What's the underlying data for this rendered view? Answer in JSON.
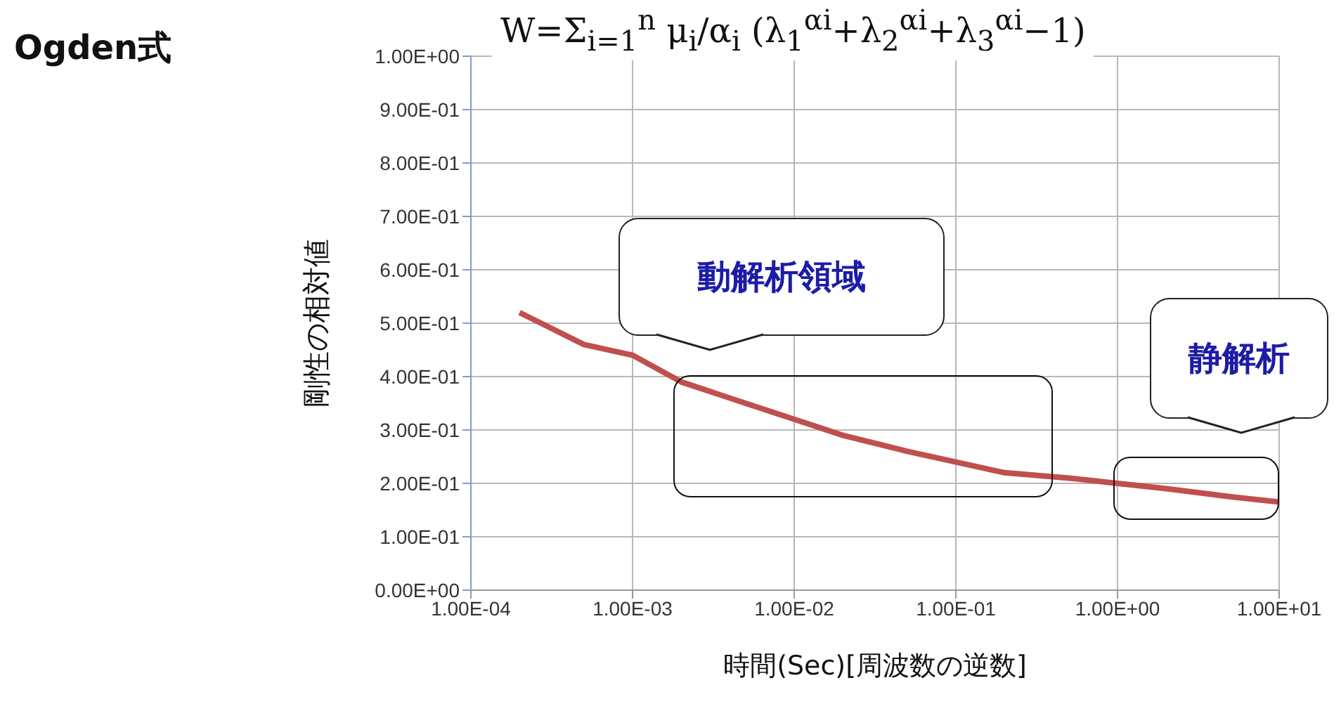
{
  "chart_data": {
    "type": "line",
    "title": "Ogden式",
    "subtitle": "W=Σ$_{i=1}$$^{n}$ μ$_{i}$/α$_{i}$ (λ$_{1}$$^{αi}$+λ$_{2}$$^{αi}$+λ$_{3}$$^{αi}$−1)",
    "xlabel": "時間(Sec)[周波数の逆数]",
    "ylabel": "剛性の相対値",
    "annotations": [
      "動解析領域",
      "静解析"
    ],
    "log": "x",
    "grid": true,
    "legend": false,
    "marker": "none",
    "line_style": "solid",
    "x": [
      0.0002,
      0.0005,
      0.001,
      0.002,
      0.005,
      0.01,
      0.02,
      0.05,
      0.1,
      0.2,
      0.5,
      1,
      2,
      5,
      10
    ],
    "series": [
      {
        "color": "#c0504d",
        "values": [
          0.52,
          0.46,
          0.44,
          0.39,
          0.35,
          0.32,
          0.29,
          0.26,
          0.24,
          0.22,
          0.21,
          0.2,
          0.19,
          0.175,
          0.165
        ]
      }
    ],
    "xlim": [
      0.0001,
      10
    ],
    "xticks": [
      {
        "value": 0.0001,
        "label": "1.00E-04"
      },
      {
        "value": 0.001,
        "label": "1.00E-03"
      },
      {
        "value": 0.01,
        "label": "1.00E-02"
      },
      {
        "value": 0.1,
        "label": "1.00E-01"
      },
      {
        "value": 1,
        "label": "1.00E+00"
      },
      {
        "value": 10,
        "label": "1.00E+01"
      }
    ],
    "ylim": [
      0,
      1
    ],
    "yticks": [
      {
        "value": 0,
        "label": "0.00E+00"
      },
      {
        "value": 0.1,
        "label": "1.00E-01"
      },
      {
        "value": 0.2,
        "label": "2.00E-01"
      },
      {
        "value": 0.3,
        "label": "3.00E-01"
      },
      {
        "value": 0.4,
        "label": "4.00E-01"
      },
      {
        "value": 0.5,
        "label": "5.00E-01"
      },
      {
        "value": 0.6,
        "label": "6.00E-01"
      },
      {
        "value": 0.7,
        "label": "7.00E-01"
      },
      {
        "value": 0.8,
        "label": "8.00E-01"
      },
      {
        "value": 0.9,
        "label": "9.00E-01"
      },
      {
        "value": 1,
        "label": "1.00E+00"
      }
    ]
  }
}
